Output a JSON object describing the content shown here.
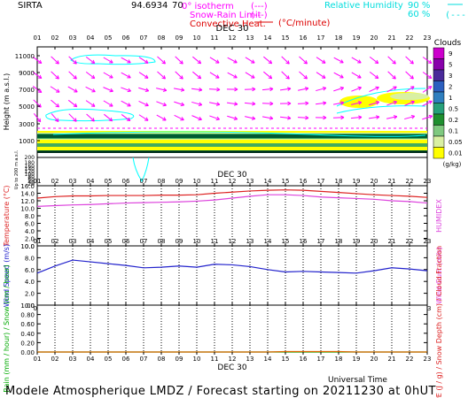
{
  "header": {
    "site": "SIRTA",
    "coords": "94.6934",
    "alt": "70",
    "legend_isotherm": "0° isotherm",
    "legend_snow": "Snow-Rain Limit",
    "legend_conv": "Convective Heat.",
    "legend_conv_unit": "(°C/minute)",
    "legend_rh": "Relative Humidity",
    "rh_90": "90 %",
    "rh_60": "60 %"
  },
  "date_label": "DEC 30",
  "hours": [
    "01",
    "02",
    "03",
    "04",
    "05",
    "06",
    "07",
    "08",
    "09",
    "10",
    "11",
    "12",
    "13",
    "14",
    "15",
    "16",
    "17",
    "18",
    "19",
    "20",
    "21",
    "22",
    "23"
  ],
  "panel1": {
    "ylabel": "Height (m a.s.l.)",
    "ylabel2": "Up to 200 m a.s.l.",
    "upper_ticks": [
      "11000",
      "9000",
      "7000",
      "5000",
      "3000",
      "1000"
    ],
    "lower_ticks": [
      "200",
      "180",
      "160",
      "140",
      "120",
      "100",
      "80",
      "60",
      "40",
      "20"
    ],
    "clouds_title": "Clouds",
    "clouds_unit": "(g/kg)",
    "cloud_levels": [
      "9",
      "5",
      "3",
      "2",
      "1",
      "0.5",
      "0.2",
      "0.1",
      "0.05",
      "0.01"
    ],
    "colors": {
      "yellow": "#ffff00",
      "light": "#d9f0a3",
      "green": "#41ab5d",
      "dark": "#005a32",
      "magenta": "#ff00ff",
      "cyan": "#00ffff",
      "red": "#cc0000"
    }
  },
  "chart_data": [
    {
      "type": "line",
      "title": "",
      "ylabel": "Temperature (°C)",
      "ylabel_right": "HUMIDEX",
      "ylim": [
        0,
        16
      ],
      "yticks": [
        "16.0",
        "14.0",
        "12.0",
        "10.0",
        "8.0",
        "6.0",
        "4.0",
        "2.0",
        "0.0"
      ],
      "x": [
        "01",
        "02",
        "03",
        "04",
        "05",
        "06",
        "07",
        "08",
        "09",
        "10",
        "11",
        "12",
        "13",
        "14",
        "15",
        "16",
        "17",
        "18",
        "19",
        "20",
        "21",
        "22",
        "23"
      ],
      "series": [
        {
          "name": "Temperature",
          "color": "#dd2222",
          "values": [
            12.7,
            13.1,
            13.3,
            13.3,
            13.4,
            13.4,
            13.4,
            13.5,
            13.5,
            13.6,
            14.0,
            14.3,
            14.6,
            14.8,
            14.9,
            14.8,
            14.5,
            14.2,
            13.9,
            13.6,
            13.4,
            13.2,
            12.9
          ]
        },
        {
          "name": "Humidex",
          "color": "#dd44dd",
          "values": [
            10.5,
            10.7,
            10.9,
            11.0,
            11.2,
            11.4,
            11.5,
            11.6,
            11.7,
            11.9,
            12.2,
            12.7,
            13.2,
            13.6,
            13.6,
            13.4,
            13.0,
            12.8,
            12.6,
            12.4,
            12.0,
            11.8,
            11.4
          ]
        }
      ]
    },
    {
      "type": "line",
      "title": "",
      "ylabel": "Wind Speed (m/s)",
      "ylabel_right": "Wind Gust (m/s)",
      "ylim": [
        0,
        10
      ],
      "yticks": [
        "10.0",
        "8.0",
        "6.0",
        "4.0",
        "2.0",
        "0.0"
      ],
      "x": [
        "01",
        "02",
        "03",
        "04",
        "05",
        "06",
        "07",
        "08",
        "09",
        "10",
        "11",
        "12",
        "13",
        "14",
        "15",
        "16",
        "17",
        "18",
        "19",
        "20",
        "21",
        "22",
        "23"
      ],
      "series": [
        {
          "name": "Wind Speed",
          "color": "#2222cc",
          "values": [
            5.4,
            6.6,
            7.6,
            7.3,
            7.0,
            6.7,
            6.3,
            6.4,
            6.6,
            6.4,
            6.9,
            6.8,
            6.5,
            6.0,
            5.6,
            5.7,
            5.6,
            5.5,
            5.4,
            5.8,
            6.3,
            6.1,
            5.8
          ]
        }
      ]
    },
    {
      "type": "line",
      "title": "",
      "ylabel": "Rain (mm / hour) / Snow (cm / hour)",
      "ylabel_right": "CAPE (J / g) / Snow Depth (cm) / Cloud Fraction",
      "ylim": [
        0,
        1
      ],
      "yticks": [
        "1.00",
        "0.80",
        "0.60",
        "0.40",
        "0.20",
        "0.00"
      ],
      "x": [
        "01",
        "02",
        "03",
        "04",
        "05",
        "06",
        "07",
        "08",
        "09",
        "10",
        "11",
        "12",
        "13",
        "14",
        "15",
        "16",
        "17",
        "18",
        "19",
        "20",
        "21",
        "22",
        "23"
      ],
      "series": [
        {
          "name": "Rain",
          "color": "#00aa00",
          "values": [
            0,
            0,
            0,
            0,
            0,
            0,
            0,
            0,
            0,
            0,
            0,
            0,
            0,
            0,
            0,
            0,
            0,
            0,
            0,
            0,
            0,
            0,
            0
          ]
        },
        {
          "name": "CAPE",
          "color": "#dd6600",
          "values": [
            0,
            0,
            0,
            0,
            0,
            0,
            0,
            0,
            0,
            0,
            0,
            0,
            0,
            0,
            0.01,
            0.01,
            0.01,
            0.01,
            0,
            0,
            0,
            0,
            0
          ]
        }
      ]
    }
  ],
  "footer": {
    "time_label": "Universal Time",
    "model_text": "Modele Atmospherique LMDZ / Forecast starting on 20211230 at 0hUT"
  }
}
